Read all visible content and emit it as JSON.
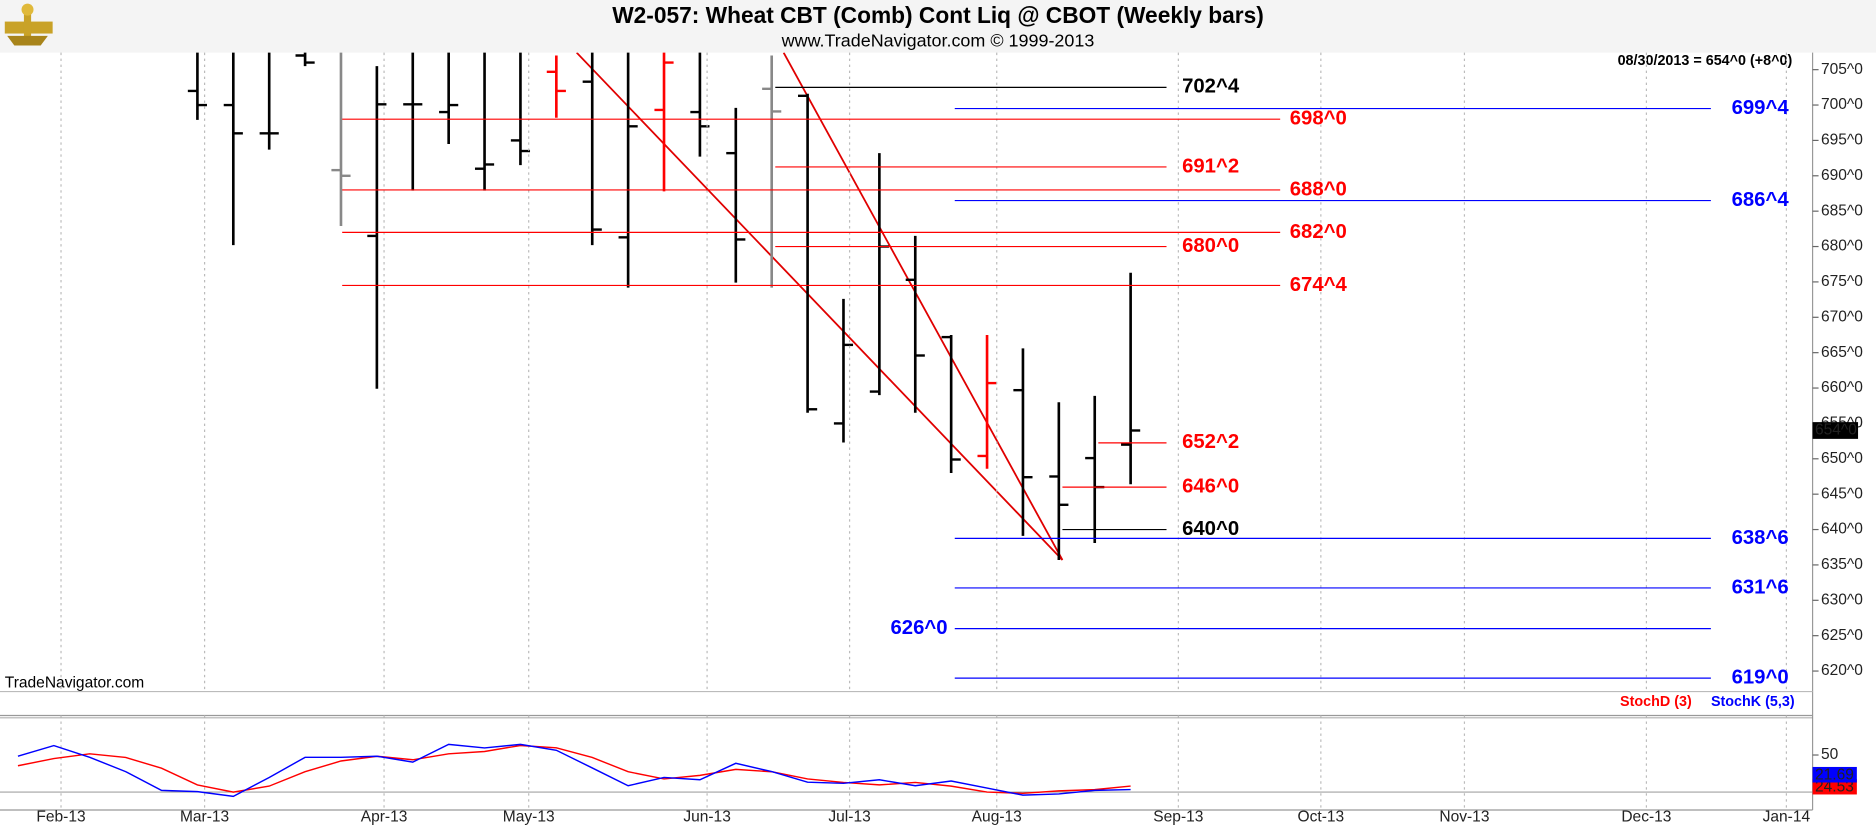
{
  "header": {
    "title": "W2-057:  Wheat CBT (Comb) Cont Liq @ CBOT  (Weekly bars)",
    "subtitle": "www.TradeNavigator.com © 1999-2013",
    "watermark": "TradeNavigator.com",
    "quote": "08/30/2013 = 654^0 (+8^0)"
  },
  "chart_data": [
    {
      "type": "ohlc",
      "x": [
        5,
        6,
        7,
        8,
        9,
        10,
        11,
        12,
        13,
        14,
        15,
        16,
        17,
        18,
        19,
        20,
        21,
        22,
        23,
        24,
        25,
        26,
        27,
        28,
        29,
        30,
        31
      ],
      "open": [
        702,
        700,
        696,
        707,
        690.8,
        681.5,
        700.1,
        699,
        691,
        695,
        704.7,
        703.3,
        681.3,
        699.3,
        699,
        693.2,
        702.3,
        701.3,
        655,
        659.5,
        675.3,
        667.2,
        650.4,
        659.7,
        647.5,
        650.1,
        652
      ],
      "high": [
        710,
        710,
        710,
        710,
        710,
        705.5,
        710,
        710,
        710,
        710,
        707,
        710,
        710,
        710,
        710,
        699.6,
        707,
        701.6,
        672.6,
        693.2,
        681.5,
        667.5,
        667.5,
        665.6,
        658,
        658.9,
        676.3
      ],
      "low": [
        697.9,
        680.2,
        693.7,
        705.5,
        682.9,
        659.9,
        687.9,
        694.5,
        687.9,
        691.5,
        698.2,
        680.2,
        674.2,
        687.8,
        692.7,
        674.9,
        674.2,
        656.5,
        652.3,
        659,
        656.5,
        648,
        648.6,
        639.1,
        635.7,
        638.1,
        646.4
      ],
      "close": [
        700,
        696,
        696,
        706,
        690,
        700.1,
        700.1,
        700,
        691.6,
        693.5,
        702,
        682.4,
        697,
        706,
        697,
        681,
        699.1,
        657,
        666.1,
        680,
        664.6,
        649.9,
        660.7,
        647.4,
        643.5,
        646,
        654
      ],
      "colors": [
        "#000000",
        "#000000",
        "#000000",
        "#000000",
        "#888888",
        "#000000",
        "#000000",
        "#000000",
        "#000000",
        "#000000",
        "#ff0000",
        "#000000",
        "#000000",
        "#ff0000",
        "#000000",
        "#000000",
        "#888888",
        "#000000",
        "#000000",
        "#000000",
        "#000000",
        "#000000",
        "#ff0000",
        "#000000",
        "#000000",
        "#000000",
        "#000000"
      ],
      "xlim": [
        -0.5,
        50
      ],
      "xticks": [
        {
          "value": 1.2,
          "label": "Feb-13"
        },
        {
          "value": 5.2,
          "label": "Mar-13"
        },
        {
          "value": 10.2,
          "label": "Apr-13"
        },
        {
          "value": 14.23,
          "label": "May-13"
        },
        {
          "value": 19.2,
          "label": "Jun-13"
        },
        {
          "value": 23.17,
          "label": "Jul-13"
        },
        {
          "value": 27.27,
          "label": "Aug-13"
        },
        {
          "value": 32.33,
          "label": "Sep-13"
        },
        {
          "value": 36.3,
          "label": "Oct-13"
        },
        {
          "value": 40.3,
          "label": "Nov-13"
        },
        {
          "value": 45.37,
          "label": "Dec-13"
        },
        {
          "value": 49.27,
          "label": "Jan-14"
        }
      ],
      "ylim": [
        617.1,
        707.4
      ],
      "yticks": [
        {
          "value": 620,
          "label": "620^0"
        },
        {
          "value": 625,
          "label": "625^0"
        },
        {
          "value": 630,
          "label": "630^0"
        },
        {
          "value": 635,
          "label": "635^0"
        },
        {
          "value": 640,
          "label": "640^0"
        },
        {
          "value": 645,
          "label": "645^0"
        },
        {
          "value": 650,
          "label": "650^0"
        },
        {
          "value": 655,
          "label": "655^0"
        },
        {
          "value": 660,
          "label": "660^0"
        },
        {
          "value": 665,
          "label": "665^0"
        },
        {
          "value": 670,
          "label": "670^0"
        },
        {
          "value": 675,
          "label": "675^0"
        },
        {
          "value": 680,
          "label": "680^0"
        },
        {
          "value": 685,
          "label": "685^0"
        },
        {
          "value": 690,
          "label": "690^0"
        },
        {
          "value": 695,
          "label": "695^0"
        },
        {
          "value": 700,
          "label": "700^0"
        },
        {
          "value": 705,
          "label": "705^0"
        }
      ],
      "levels": [
        {
          "value": 702.5,
          "label": "702^4",
          "color": "#000000"
        },
        {
          "value": 699.5,
          "label": "699^4",
          "color": "#0000ff"
        },
        {
          "value": 698,
          "label": "698^0",
          "color": "#ff0000"
        },
        {
          "value": 691.25,
          "label": "691^2",
          "color": "#ff0000"
        },
        {
          "value": 688,
          "label": "688^0",
          "color": "#ff0000"
        },
        {
          "value": 686.5,
          "label": "686^4",
          "color": "#0000ff"
        },
        {
          "value": 682,
          "label": "682^0",
          "color": "#ff0000"
        },
        {
          "value": 680,
          "label": "680^0",
          "color": "#ff0000"
        },
        {
          "value": 674.5,
          "label": "674^4",
          "color": "#ff0000"
        },
        {
          "value": 652.25,
          "label": "652^2",
          "color": "#ff0000"
        },
        {
          "value": 646,
          "label": "646^0",
          "color": "#ff0000"
        },
        {
          "value": 640,
          "label": "640^0",
          "color": "#000000"
        },
        {
          "value": 638.75,
          "label": "638^6",
          "color": "#0000ff"
        },
        {
          "value": 631.75,
          "label": "631^6",
          "color": "#0000ff"
        },
        {
          "value": 626,
          "label": "626^0",
          "color": "#0000ff"
        },
        {
          "value": 619,
          "label": "619^0",
          "color": "#0000ff"
        }
      ],
      "last_price": {
        "value": 654,
        "label": "654^0"
      },
      "grid": true
    },
    {
      "type": "line",
      "x": [
        0,
        1,
        2,
        3,
        4,
        5,
        6,
        7,
        8,
        9,
        10,
        11,
        12,
        13,
        14,
        15,
        16,
        17,
        18,
        19,
        20,
        21,
        22,
        23,
        24,
        25,
        26,
        27,
        28,
        29,
        30,
        31
      ],
      "series": [
        {
          "name": "StochD (3)",
          "color": "#ff0000",
          "values": [
            41.2,
            47.1,
            51,
            48,
            39.2,
            25.5,
            19.6,
            24.5,
            36.3,
            45.1,
            49,
            46.1,
            51,
            52.9,
            57.8,
            55.9,
            48,
            36.3,
            30.4,
            33.3,
            38.2,
            36.3,
            30.4,
            27.5,
            25.5,
            27.5,
            24.5,
            19.6,
            18.6,
            20.6,
            21.6,
            24.53
          ],
          "last_label": "24.53"
        },
        {
          "name": "StochK (5,3)",
          "color": "#0000ff",
          "values": [
            49,
            57.7,
            48.1,
            36.4,
            21,
            20,
            16.1,
            31.6,
            48.1,
            48.1,
            49,
            44.2,
            58.7,
            55.8,
            58.7,
            53.9,
            39.4,
            24.8,
            31.6,
            29.7,
            43.2,
            36.4,
            27.7,
            26.8,
            29.7,
            24.8,
            28.7,
            22.9,
            17.1,
            18.1,
            21,
            21.69
          ],
          "last_label": "21.69"
        }
      ],
      "xlim": [
        -0.5,
        50
      ],
      "ylim": [
        4.9,
        82.4
      ],
      "yticks": [
        50
      ]
    }
  ]
}
